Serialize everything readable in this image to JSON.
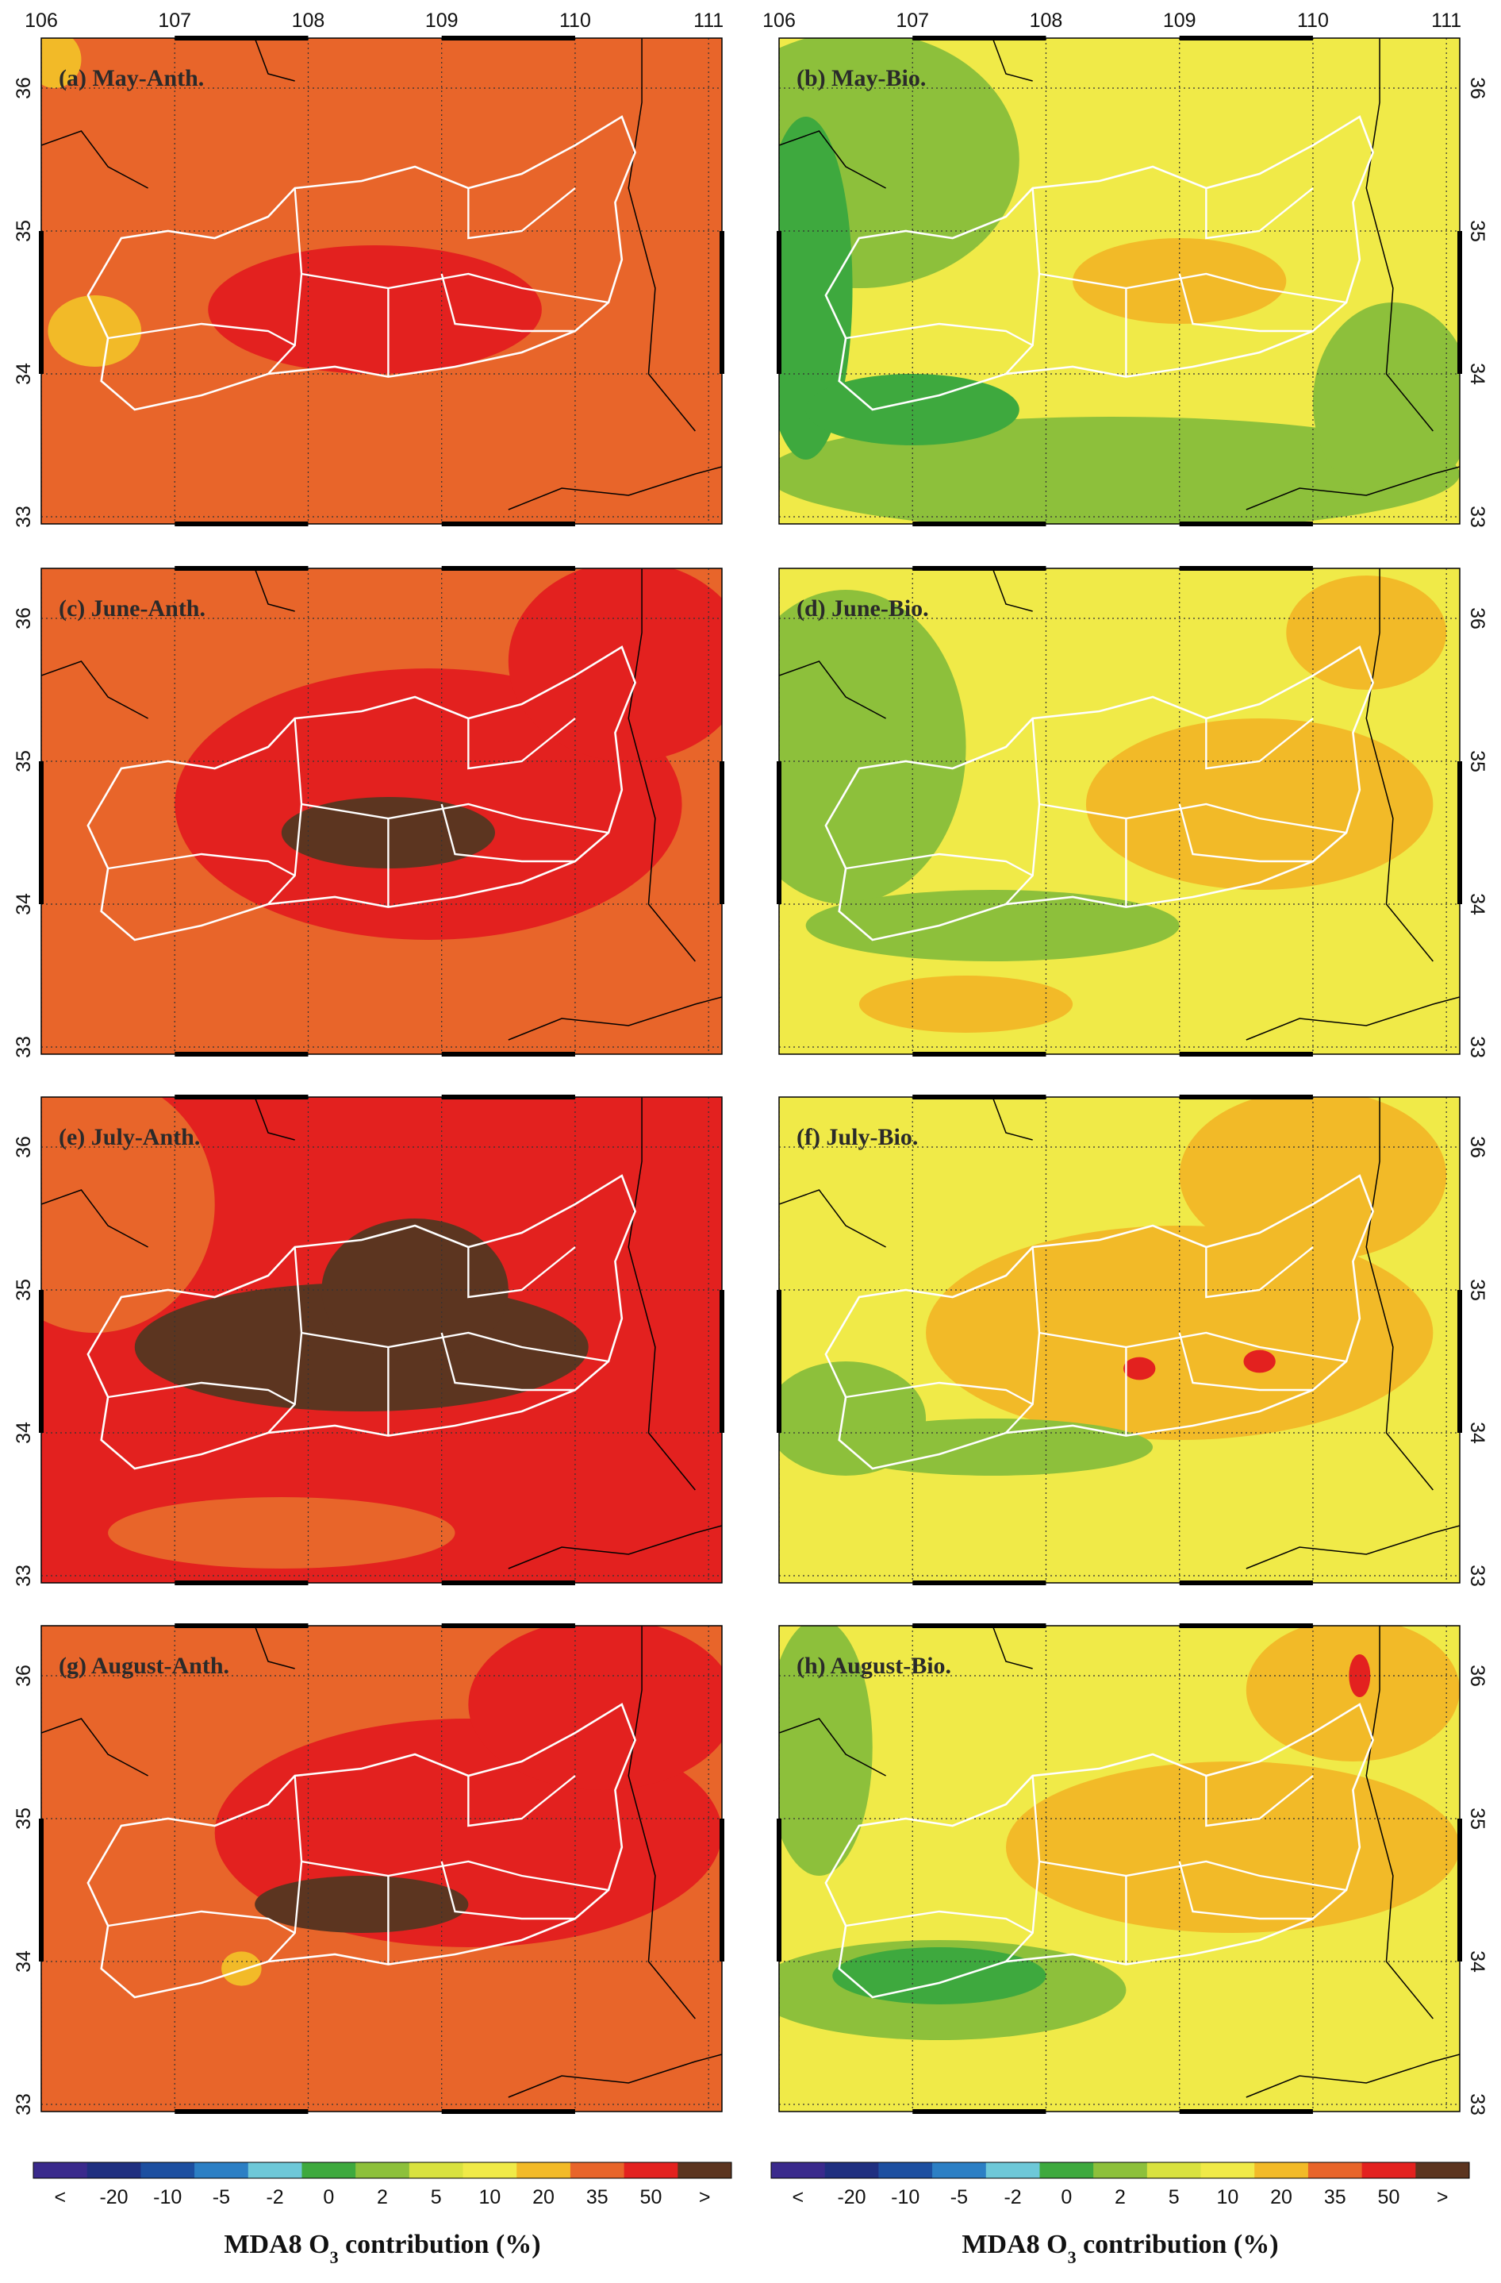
{
  "figure": {
    "x_ticks": [
      "106",
      "107",
      "108",
      "109",
      "110",
      "111"
    ],
    "y_ticks": [
      "33",
      "34",
      "35",
      "36"
    ],
    "colors": {
      "field_orange": "#e8652a",
      "field_red": "#e3211f",
      "field_brown": "#5c3520",
      "field_yellow": "#f0ea48",
      "field_gold": "#f2ba28",
      "field_lightgreen": "#8dc03b",
      "field_green": "#3ea93e",
      "boundary": "#ffffff",
      "border": "#000000"
    },
    "panels": [
      {
        "id": "a",
        "title": "(a) May-Anth.",
        "base": "orange",
        "layers": [
          {
            "level": "red",
            "cx": 108.5,
            "cy": 34.45,
            "rx": 1.25,
            "ry": 0.45
          },
          {
            "level": "gold",
            "cx": 106.4,
            "cy": 34.3,
            "rx": 0.35,
            "ry": 0.25
          },
          {
            "level": "gold",
            "cx": 106.1,
            "cy": 36.2,
            "rx": 0.2,
            "ry": 0.2
          }
        ]
      },
      {
        "id": "b",
        "title": "(b) May-Bio.",
        "base": "yellow",
        "layers": [
          {
            "level": "lightgreen",
            "cx": 106.6,
            "cy": 35.5,
            "rx": 1.2,
            "ry": 0.9
          },
          {
            "level": "lightgreen",
            "cx": 108.5,
            "cy": 33.3,
            "rx": 2.6,
            "ry": 0.4
          },
          {
            "level": "lightgreen",
            "cx": 110.6,
            "cy": 33.8,
            "rx": 0.6,
            "ry": 0.7
          },
          {
            "level": "green",
            "cx": 106.2,
            "cy": 34.6,
            "rx": 0.35,
            "ry": 1.2
          },
          {
            "level": "green",
            "cx": 107.0,
            "cy": 33.75,
            "rx": 0.8,
            "ry": 0.25
          },
          {
            "level": "gold",
            "cx": 109.0,
            "cy": 34.65,
            "rx": 0.8,
            "ry": 0.3
          }
        ]
      },
      {
        "id": "c",
        "title": "(c) June-Anth.",
        "base": "orange",
        "layers": [
          {
            "level": "red",
            "cx": 108.9,
            "cy": 34.7,
            "rx": 1.9,
            "ry": 0.95
          },
          {
            "level": "red",
            "cx": 110.4,
            "cy": 35.7,
            "rx": 0.9,
            "ry": 0.7
          },
          {
            "level": "brown",
            "cx": 108.6,
            "cy": 34.5,
            "rx": 0.8,
            "ry": 0.25
          }
        ]
      },
      {
        "id": "d",
        "title": "(d) June-Bio.",
        "base": "yellow",
        "layers": [
          {
            "level": "lightgreen",
            "cx": 106.5,
            "cy": 35.1,
            "rx": 0.9,
            "ry": 1.1
          },
          {
            "level": "lightgreen",
            "cx": 107.6,
            "cy": 33.85,
            "rx": 1.4,
            "ry": 0.25
          },
          {
            "level": "gold",
            "cx": 109.6,
            "cy": 34.7,
            "rx": 1.3,
            "ry": 0.6
          },
          {
            "level": "gold",
            "cx": 110.4,
            "cy": 35.9,
            "rx": 0.6,
            "ry": 0.4
          },
          {
            "level": "gold",
            "cx": 107.4,
            "cy": 33.3,
            "rx": 0.8,
            "ry": 0.2
          }
        ]
      },
      {
        "id": "e",
        "title": "(e) July-Anth.",
        "base": "red",
        "layers": [
          {
            "level": "orange",
            "cx": 106.4,
            "cy": 35.6,
            "rx": 0.9,
            "ry": 0.9
          },
          {
            "level": "orange",
            "cx": 107.8,
            "cy": 33.3,
            "rx": 1.3,
            "ry": 0.25
          },
          {
            "level": "brown",
            "cx": 108.4,
            "cy": 34.6,
            "rx": 1.7,
            "ry": 0.45
          },
          {
            "level": "brown",
            "cx": 108.8,
            "cy": 35.0,
            "rx": 0.7,
            "ry": 0.5
          }
        ]
      },
      {
        "id": "f",
        "title": "(f) July-Bio.",
        "base": "yellow",
        "layers": [
          {
            "level": "gold",
            "cx": 109.0,
            "cy": 34.7,
            "rx": 1.9,
            "ry": 0.75
          },
          {
            "level": "gold",
            "cx": 110.0,
            "cy": 35.8,
            "rx": 1.0,
            "ry": 0.6
          },
          {
            "level": "lightgreen",
            "cx": 106.5,
            "cy": 34.1,
            "rx": 0.6,
            "ry": 0.4
          },
          {
            "level": "lightgreen",
            "cx": 107.6,
            "cy": 33.9,
            "rx": 1.2,
            "ry": 0.2
          },
          {
            "level": "red",
            "cx": 108.7,
            "cy": 34.45,
            "rx": 0.12,
            "ry": 0.08
          },
          {
            "level": "red",
            "cx": 109.6,
            "cy": 34.5,
            "rx": 0.12,
            "ry": 0.08
          }
        ]
      },
      {
        "id": "g",
        "title": "(g) August-Anth.",
        "base": "orange",
        "layers": [
          {
            "level": "red",
            "cx": 109.2,
            "cy": 34.9,
            "rx": 1.9,
            "ry": 0.8
          },
          {
            "level": "red",
            "cx": 110.2,
            "cy": 35.8,
            "rx": 1.0,
            "ry": 0.6
          },
          {
            "level": "brown",
            "cx": 108.4,
            "cy": 34.4,
            "rx": 0.8,
            "ry": 0.2
          },
          {
            "level": "gold",
            "cx": 107.5,
            "cy": 33.95,
            "rx": 0.15,
            "ry": 0.12
          }
        ]
      },
      {
        "id": "h",
        "title": "(h) August-Bio.",
        "base": "yellow",
        "layers": [
          {
            "level": "gold",
            "cx": 109.4,
            "cy": 34.8,
            "rx": 1.7,
            "ry": 0.6
          },
          {
            "level": "gold",
            "cx": 110.3,
            "cy": 35.9,
            "rx": 0.8,
            "ry": 0.5
          },
          {
            "level": "lightgreen",
            "cx": 107.2,
            "cy": 33.8,
            "rx": 1.4,
            "ry": 0.35
          },
          {
            "level": "lightgreen",
            "cx": 106.3,
            "cy": 35.5,
            "rx": 0.4,
            "ry": 0.9
          },
          {
            "level": "green",
            "cx": 107.2,
            "cy": 33.9,
            "rx": 0.8,
            "ry": 0.2
          },
          {
            "level": "red",
            "cx": 110.35,
            "cy": 36.0,
            "rx": 0.08,
            "ry": 0.15
          }
        ]
      }
    ],
    "colorbar": {
      "labels": [
        "<",
        "-20",
        "-10",
        "-5",
        "-2",
        "0",
        "2",
        "5",
        "10",
        "20",
        "35",
        "50",
        ">"
      ],
      "colors": [
        "#3a2a8c",
        "#1f2f80",
        "#1d4fa0",
        "#2c7fc4",
        "#6ec8d8",
        "#3ea93e",
        "#8dc03b",
        "#d9e240",
        "#f0ea48",
        "#f2ba28",
        "#e8652a",
        "#e3211f",
        "#5c3520"
      ],
      "title_main": "MDA8 O",
      "title_sub": "3",
      "title_rest": " contribution (%)"
    }
  }
}
